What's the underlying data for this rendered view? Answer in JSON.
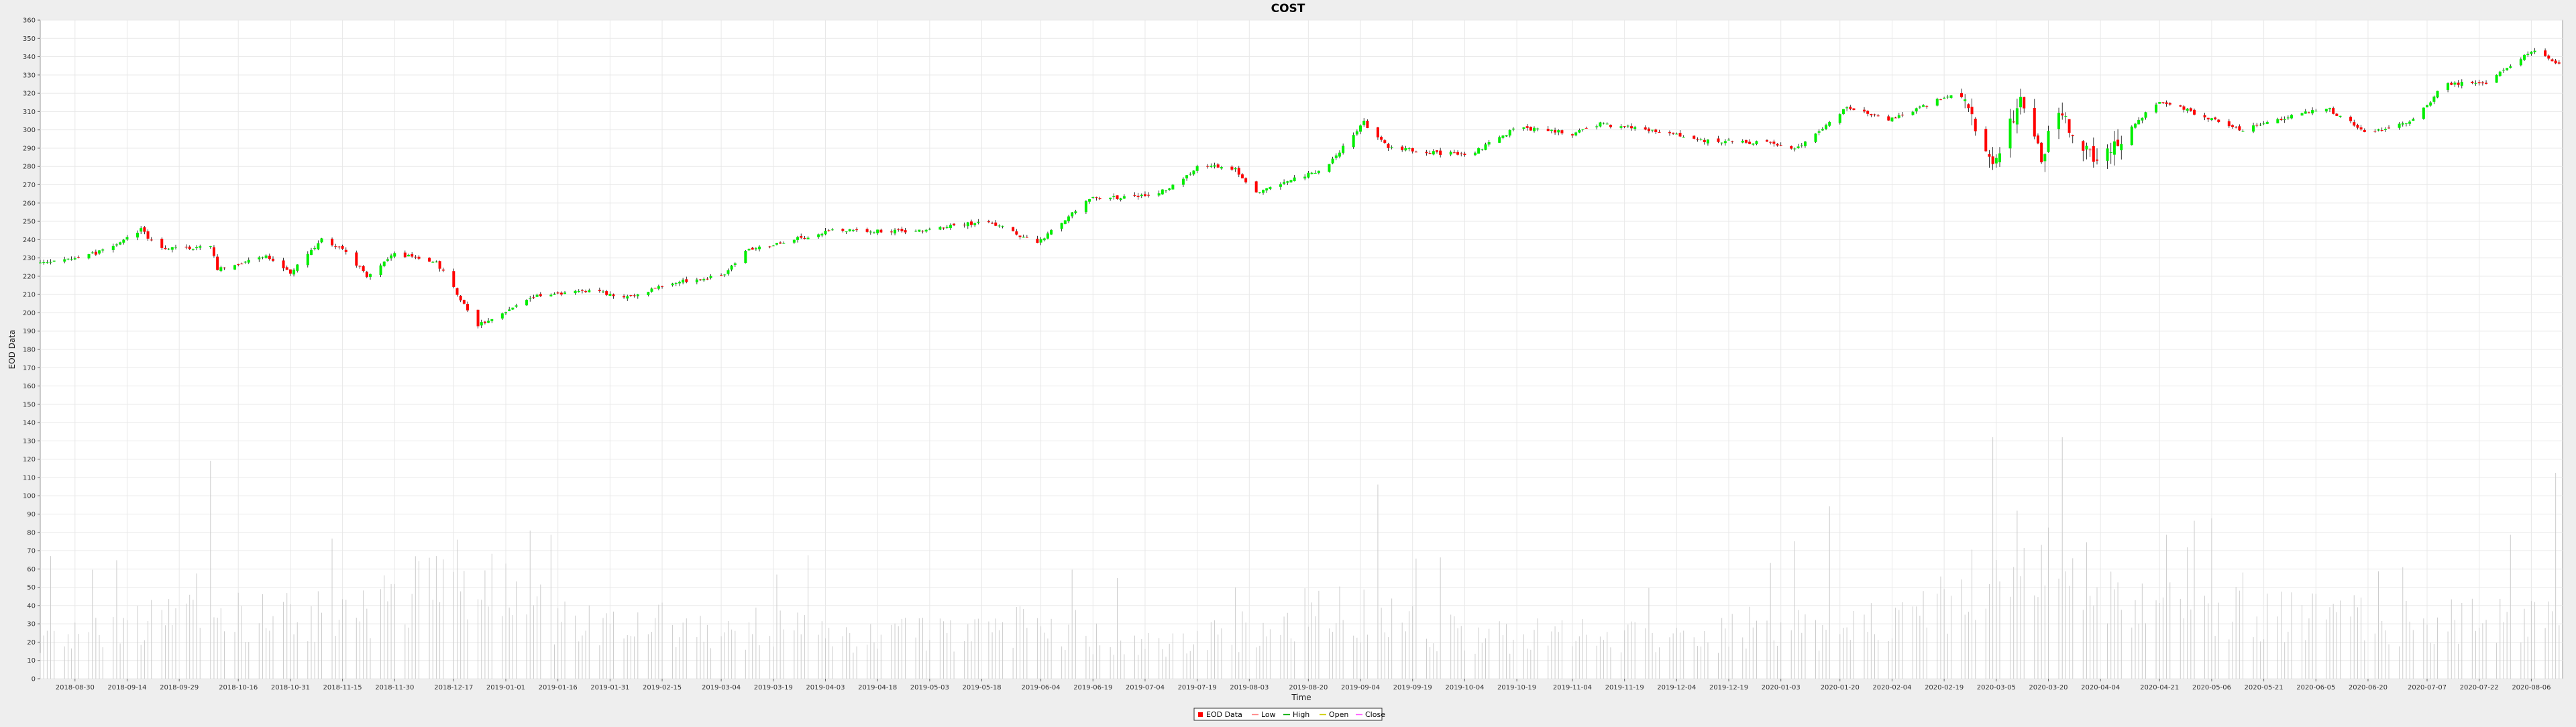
{
  "chart_data": {
    "type": "candlestick",
    "title": "COST",
    "xlabel": "Time",
    "ylabel": "EOD Data",
    "ylim": [
      0,
      360
    ],
    "y_ticks": [
      0,
      10,
      20,
      30,
      40,
      50,
      60,
      70,
      80,
      90,
      100,
      110,
      120,
      130,
      140,
      150,
      160,
      170,
      180,
      190,
      200,
      210,
      220,
      230,
      240,
      250,
      260,
      270,
      280,
      290,
      300,
      310,
      320,
      330,
      340,
      350,
      360
    ],
    "x_range": [
      "2018-08-20",
      "2020-08-15"
    ],
    "x_ticks": [
      "2018-08-30",
      "2018-09-14",
      "2018-09-29",
      "2018-10-16",
      "2018-10-31",
      "2018-11-15",
      "2018-11-30",
      "2018-12-17",
      "2019-01-01",
      "2019-01-16",
      "2019-01-31",
      "2019-02-15",
      "2019-03-04",
      "2019-03-19",
      "2019-04-03",
      "2019-04-18",
      "2019-05-03",
      "2019-05-18",
      "2019-06-04",
      "2019-06-19",
      "2019-07-04",
      "2019-07-19",
      "2019-08-03",
      "2019-08-20",
      "2019-09-04",
      "2019-09-19",
      "2019-10-04",
      "2019-10-19",
      "2019-11-04",
      "2019-11-19",
      "2019-12-04",
      "2019-12-19",
      "2020-01-03",
      "2020-01-20",
      "2020-02-04",
      "2020-02-19",
      "2020-03-05",
      "2020-03-20",
      "2020-04-04",
      "2020-04-21",
      "2020-05-06",
      "2020-05-21",
      "2020-06-05",
      "2020-06-20",
      "2020-07-07",
      "2020-07-22",
      "2020-08-06"
    ],
    "grid": true,
    "legend_position": "bottom-center",
    "legend": [
      "EOD Data",
      "Low",
      "High",
      "Open",
      "Close"
    ],
    "colors": {
      "up": "#00ee00",
      "down": "#ff0000",
      "wick": "#000000",
      "volume": "#cccccc",
      "grid": "#e8e8e8",
      "plot_background": "#ffffff",
      "page_background": "#eeeeee"
    },
    "price_path": [
      {
        "date": "2018-08-20",
        "close": 227
      },
      {
        "date": "2018-09-08",
        "close": 234
      },
      {
        "date": "2018-09-18",
        "close": 246
      },
      {
        "date": "2018-09-23",
        "close": 235
      },
      {
        "date": "2018-10-08",
        "close": 236
      },
      {
        "date": "2018-10-10",
        "close": 224
      },
      {
        "date": "2018-10-24",
        "close": 231
      },
      {
        "date": "2018-10-31",
        "close": 222
      },
      {
        "date": "2018-11-09",
        "close": 240
      },
      {
        "date": "2018-11-16",
        "close": 233
      },
      {
        "date": "2018-11-22",
        "close": 220
      },
      {
        "date": "2018-11-30",
        "close": 232
      },
      {
        "date": "2018-12-12",
        "close": 228
      },
      {
        "date": "2018-12-24",
        "close": 193
      },
      {
        "date": "2019-01-10",
        "close": 209
      },
      {
        "date": "2019-01-25",
        "close": 212
      },
      {
        "date": "2019-02-06",
        "close": 209
      },
      {
        "date": "2019-02-20",
        "close": 217
      },
      {
        "date": "2019-03-05",
        "close": 220
      },
      {
        "date": "2019-03-10",
        "close": 233
      },
      {
        "date": "2019-04-05",
        "close": 245
      },
      {
        "date": "2019-05-01",
        "close": 245
      },
      {
        "date": "2019-05-20",
        "close": 250
      },
      {
        "date": "2019-06-03",
        "close": 238
      },
      {
        "date": "2019-06-18",
        "close": 262
      },
      {
        "date": "2019-07-08",
        "close": 265
      },
      {
        "date": "2019-07-20",
        "close": 281
      },
      {
        "date": "2019-07-30",
        "close": 278
      },
      {
        "date": "2019-08-05",
        "close": 266
      },
      {
        "date": "2019-08-25",
        "close": 279
      },
      {
        "date": "2019-09-05",
        "close": 304
      },
      {
        "date": "2019-09-12",
        "close": 290
      },
      {
        "date": "2019-10-05",
        "close": 286
      },
      {
        "date": "2019-10-19",
        "close": 301
      },
      {
        "date": "2019-11-04",
        "close": 298
      },
      {
        "date": "2019-11-12",
        "close": 303
      },
      {
        "date": "2019-11-30",
        "close": 299
      },
      {
        "date": "2019-12-12",
        "close": 294
      },
      {
        "date": "2019-12-30",
        "close": 293
      },
      {
        "date": "2020-01-08",
        "close": 290
      },
      {
        "date": "2020-01-22",
        "close": 312
      },
      {
        "date": "2020-02-03",
        "close": 305
      },
      {
        "date": "2020-02-24",
        "close": 322
      },
      {
        "date": "2020-02-28",
        "close": 300
      },
      {
        "date": "2020-03-05",
        "close": 282
      },
      {
        "date": "2020-03-12",
        "close": 318
      },
      {
        "date": "2020-03-18",
        "close": 285
      },
      {
        "date": "2020-03-23",
        "close": 310
      },
      {
        "date": "2020-04-03",
        "close": 282
      },
      {
        "date": "2020-04-12",
        "close": 300
      },
      {
        "date": "2020-04-21",
        "close": 316
      },
      {
        "date": "2020-05-06",
        "close": 306
      },
      {
        "date": "2020-05-15",
        "close": 300
      },
      {
        "date": "2020-05-25",
        "close": 306
      },
      {
        "date": "2020-06-08",
        "close": 312
      },
      {
        "date": "2020-06-20",
        "close": 298
      },
      {
        "date": "2020-07-03",
        "close": 305
      },
      {
        "date": "2020-07-12",
        "close": 325
      },
      {
        "date": "2020-07-24",
        "close": 326
      },
      {
        "date": "2020-08-07",
        "close": 344
      },
      {
        "date": "2020-08-15",
        "close": 334
      }
    ],
    "volume_profile": [
      {
        "date": "2018-08-20",
        "volume": 20
      },
      {
        "date": "2018-10-01",
        "volume": 33
      },
      {
        "date": "2018-11-10",
        "volume": 33
      },
      {
        "date": "2018-12-20",
        "volume": 55
      },
      {
        "date": "2019-01-20",
        "volume": 28
      },
      {
        "date": "2019-03-01",
        "volume": 30
      },
      {
        "date": "2019-04-15",
        "volume": 22
      },
      {
        "date": "2019-06-01",
        "volume": 28
      },
      {
        "date": "2019-07-15",
        "volume": 18
      },
      {
        "date": "2019-08-25",
        "volume": 38
      },
      {
        "date": "2019-10-01",
        "volume": 24
      },
      {
        "date": "2019-12-01",
        "volume": 22
      },
      {
        "date": "2020-01-15",
        "volume": 28
      },
      {
        "date": "2020-02-20",
        "volume": 42
      },
      {
        "date": "2020-03-15",
        "volume": 68
      },
      {
        "date": "2020-04-15",
        "volume": 38
      },
      {
        "date": "2020-06-01",
        "volume": 33
      },
      {
        "date": "2020-08-15",
        "volume": 30
      }
    ]
  }
}
